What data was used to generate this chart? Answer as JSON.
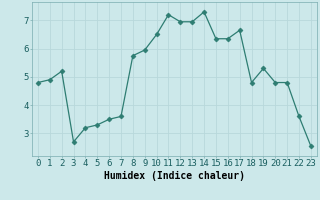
{
  "x": [
    0,
    1,
    2,
    3,
    4,
    5,
    6,
    7,
    8,
    9,
    10,
    11,
    12,
    13,
    14,
    15,
    16,
    17,
    18,
    19,
    20,
    21,
    22,
    23
  ],
  "y": [
    4.8,
    4.9,
    5.2,
    2.7,
    3.2,
    3.3,
    3.5,
    3.6,
    5.75,
    5.95,
    6.5,
    7.2,
    6.95,
    6.95,
    7.3,
    6.35,
    6.35,
    6.65,
    4.8,
    5.3,
    4.8,
    4.8,
    3.6,
    2.55
  ],
  "line_color": "#2e7d72",
  "marker": "D",
  "marker_size": 2.5,
  "bg_color": "#cce8ea",
  "grid_color": "#b8d8db",
  "xlabel": "Humidex (Indice chaleur)",
  "ylabel": "",
  "xlim": [
    -0.5,
    23.5
  ],
  "ylim": [
    2.2,
    7.65
  ],
  "xticks": [
    0,
    1,
    2,
    3,
    4,
    5,
    6,
    7,
    8,
    9,
    10,
    11,
    12,
    13,
    14,
    15,
    16,
    17,
    18,
    19,
    20,
    21,
    22,
    23
  ],
  "yticks": [
    3,
    4,
    5,
    6,
    7
  ],
  "xlabel_fontsize": 7,
  "tick_fontsize": 6.5
}
